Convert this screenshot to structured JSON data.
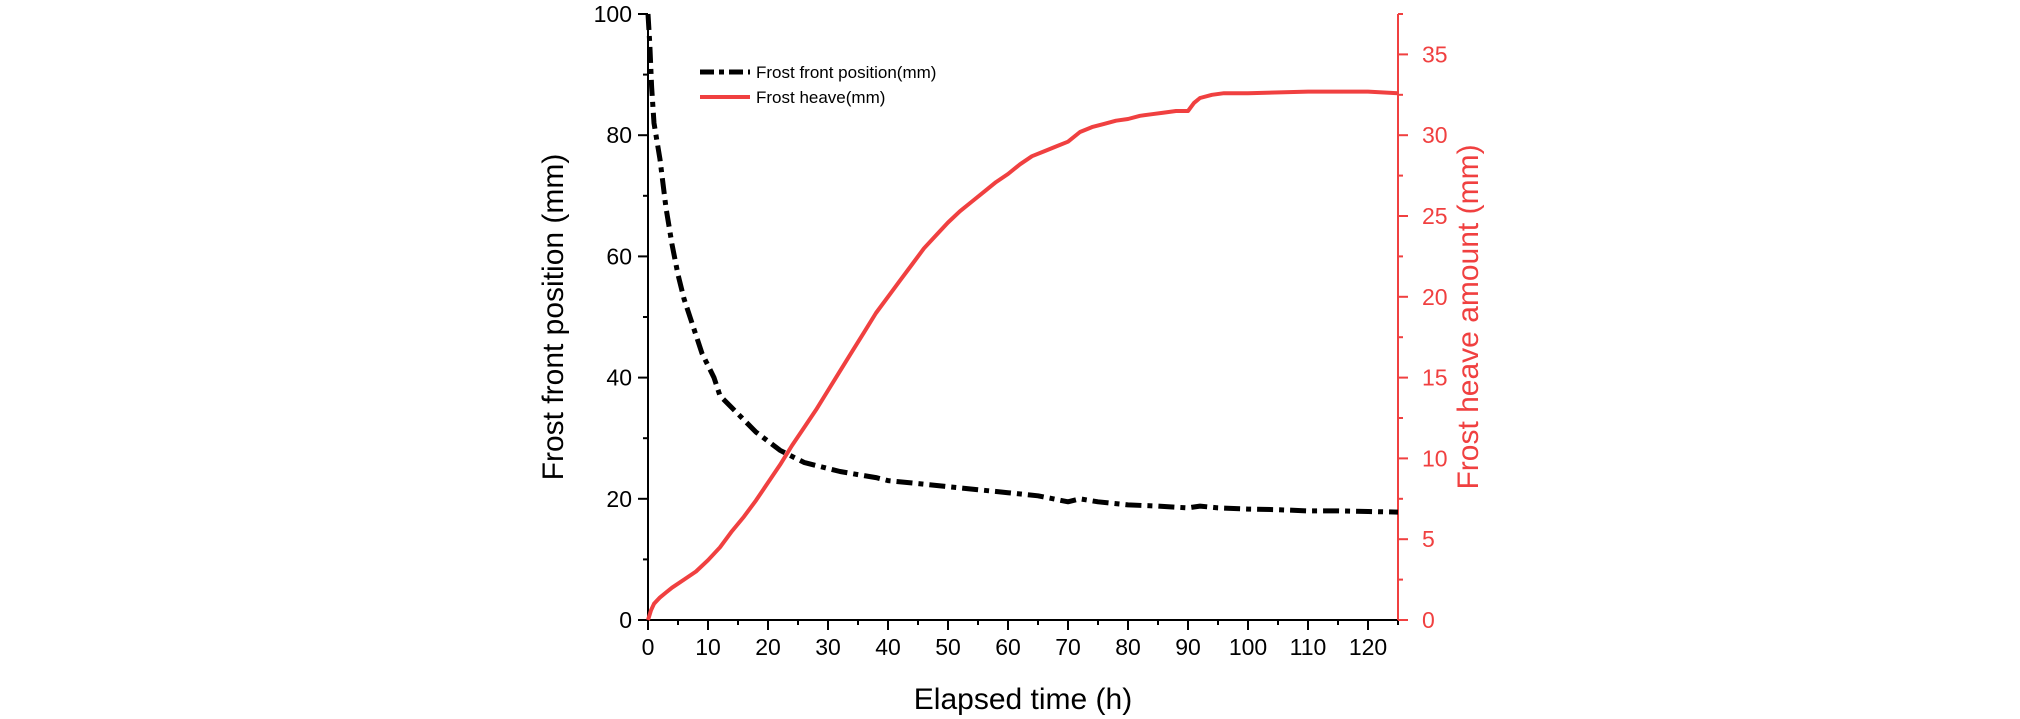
{
  "chart_data": {
    "type": "line",
    "xlabel": "Elapsed time (h)",
    "ylabel_left": "Frost front position (mm)",
    "ylabel_right": "Frost heave amount (mm)",
    "xlim": [
      0,
      125
    ],
    "ylim_left": [
      0,
      100
    ],
    "ylim_right": [
      0,
      37.5
    ],
    "x_ticks": [
      0,
      10,
      20,
      30,
      40,
      50,
      60,
      70,
      80,
      90,
      100,
      110,
      120
    ],
    "y_left_ticks": [
      0,
      20,
      40,
      60,
      80,
      100
    ],
    "y_right_ticks": [
      0,
      5,
      10,
      15,
      20,
      25,
      30,
      35
    ],
    "grid": false,
    "legend_position": "top-left",
    "colors": {
      "left_axis": "#000000",
      "right_axis": "#f04040"
    },
    "series": [
      {
        "name": "Frost front position(mm)",
        "axis": "left",
        "style": "dash-dot",
        "color": "#000000",
        "points": [
          [
            0,
            100
          ],
          [
            0.3,
            95
          ],
          [
            0.6,
            88
          ],
          [
            1,
            82
          ],
          [
            2,
            76
          ],
          [
            3,
            68
          ],
          [
            4,
            62
          ],
          [
            5,
            57
          ],
          [
            6,
            53
          ],
          [
            7,
            50
          ],
          [
            8,
            47
          ],
          [
            9,
            44
          ],
          [
            10,
            42
          ],
          [
            11,
            40
          ],
          [
            12,
            37
          ],
          [
            14,
            35
          ],
          [
            16,
            33
          ],
          [
            18,
            31
          ],
          [
            20,
            29.5
          ],
          [
            22,
            28
          ],
          [
            24,
            27
          ],
          [
            26,
            26
          ],
          [
            28,
            25.5
          ],
          [
            30,
            25
          ],
          [
            32,
            24.5
          ],
          [
            35,
            24
          ],
          [
            38,
            23.5
          ],
          [
            40,
            23
          ],
          [
            45,
            22.5
          ],
          [
            50,
            22
          ],
          [
            55,
            21.5
          ],
          [
            60,
            21
          ],
          [
            65,
            20.5
          ],
          [
            70,
            19.5
          ],
          [
            72,
            20
          ],
          [
            75,
            19.5
          ],
          [
            80,
            19
          ],
          [
            85,
            18.8
          ],
          [
            90,
            18.5
          ],
          [
            92,
            18.8
          ],
          [
            95,
            18.5
          ],
          [
            100,
            18.3
          ],
          [
            105,
            18.2
          ],
          [
            110,
            18
          ],
          [
            115,
            18
          ],
          [
            120,
            17.9
          ],
          [
            125,
            17.8
          ]
        ]
      },
      {
        "name": "Frost heave(mm)",
        "axis": "right",
        "style": "solid",
        "color": "#f04040",
        "points": [
          [
            0,
            0
          ],
          [
            0.5,
            0.6
          ],
          [
            1,
            1
          ],
          [
            2,
            1.4
          ],
          [
            3,
            1.7
          ],
          [
            4,
            2
          ],
          [
            6,
            2.5
          ],
          [
            8,
            3
          ],
          [
            10,
            3.7
          ],
          [
            12,
            4.5
          ],
          [
            14,
            5.5
          ],
          [
            16,
            6.4
          ],
          [
            18,
            7.4
          ],
          [
            20,
            8.5
          ],
          [
            22,
            9.6
          ],
          [
            24,
            10.8
          ],
          [
            26,
            11.9
          ],
          [
            28,
            13
          ],
          [
            30,
            14.2
          ],
          [
            32,
            15.4
          ],
          [
            34,
            16.6
          ],
          [
            36,
            17.8
          ],
          [
            38,
            19
          ],
          [
            40,
            20
          ],
          [
            42,
            21
          ],
          [
            44,
            22
          ],
          [
            46,
            23
          ],
          [
            48,
            23.8
          ],
          [
            50,
            24.6
          ],
          [
            52,
            25.3
          ],
          [
            54,
            25.9
          ],
          [
            56,
            26.5
          ],
          [
            58,
            27.1
          ],
          [
            60,
            27.6
          ],
          [
            62,
            28.2
          ],
          [
            64,
            28.7
          ],
          [
            66,
            29
          ],
          [
            68,
            29.3
          ],
          [
            70,
            29.6
          ],
          [
            72,
            30.2
          ],
          [
            74,
            30.5
          ],
          [
            76,
            30.7
          ],
          [
            78,
            30.9
          ],
          [
            80,
            31
          ],
          [
            82,
            31.2
          ],
          [
            84,
            31.3
          ],
          [
            86,
            31.4
          ],
          [
            88,
            31.5
          ],
          [
            90,
            31.5
          ],
          [
            91,
            32
          ],
          [
            92,
            32.3
          ],
          [
            94,
            32.5
          ],
          [
            96,
            32.6
          ],
          [
            100,
            32.6
          ],
          [
            110,
            32.7
          ],
          [
            120,
            32.7
          ],
          [
            125,
            32.6
          ]
        ]
      }
    ]
  }
}
